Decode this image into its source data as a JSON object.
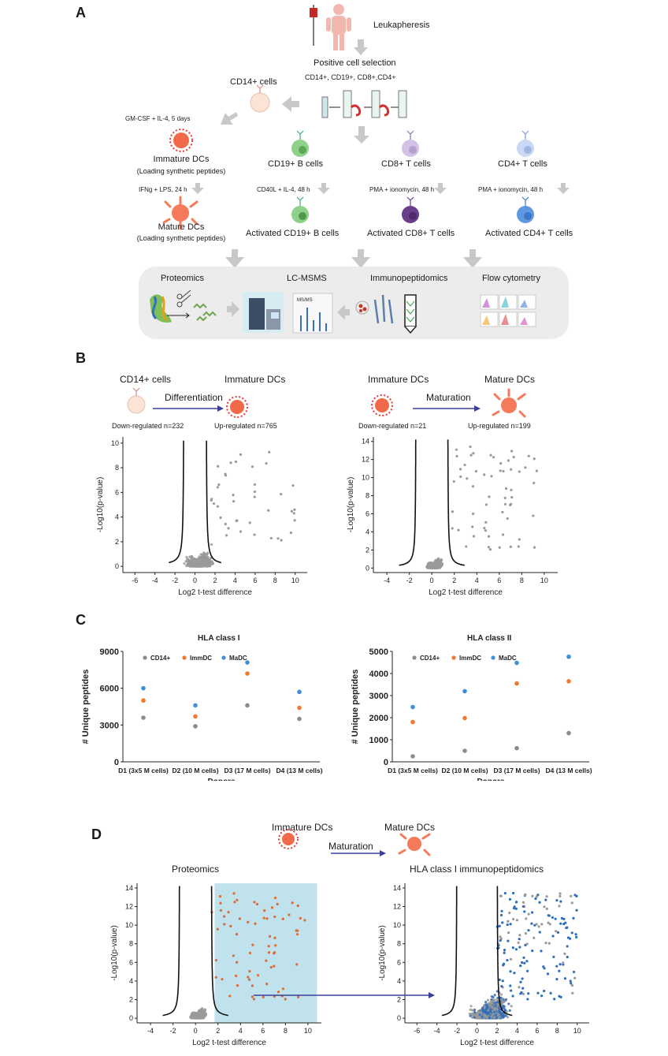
{
  "panelA": {
    "letter": "A",
    "leukapheresis": "Leukapheresis",
    "positive_selection": "Positive cell selection",
    "markers": "CD14+, CD19+, CD8+,CD4+",
    "cd14": "CD14+ cells",
    "gmcsf": "GM-CSF + IL-4, 5 days",
    "immature": "Immature DCs",
    "immature_sub": "(Loading synthetic peptides)",
    "ifng": "IFNg + LPS, 24 h",
    "mature": "Mature DCs",
    "mature_sub": "(Loading synthetic peptides)",
    "cd19": "CD19+ B cells",
    "cd40l": "CD40L + IL-4, 48 h",
    "act_cd19": "Activated CD19+ B cells",
    "cd8": "CD8+ T cells",
    "pma1": "PMA + ionomycin, 48 h",
    "act_cd8": "Activated CD8+ T cells",
    "cd4": "CD4+ T cells",
    "pma2": "PMA + ionomycin, 48 h",
    "act_cd4": "Activated CD4+ T cells",
    "proteomics": "Proteomics",
    "lcmsms": "LC-MSMS",
    "msms": "MS/MS",
    "immunopep": "Immunopeptidomics",
    "flow": "Flow cytometry"
  },
  "panelB": {
    "letter": "B",
    "left": {
      "from": "CD14+ cells",
      "to": "Immature DCs",
      "process": "Differentiation",
      "down": "Down-regulated n=232",
      "up": "Up-regulated n=765",
      "ylabel": "-Log10(p-value)",
      "xlabel": "Log2 t-test difference",
      "xticks": [
        "-6",
        "-4",
        "-2",
        "0",
        "2",
        "4",
        "6",
        "8",
        "10"
      ],
      "yticks": [
        "0",
        "2",
        "4",
        "6",
        "8",
        "10"
      ]
    },
    "right": {
      "from": "Immature DCs",
      "to": "Mature DCs",
      "process": "Maturation",
      "down": "Down-regulated n=21",
      "up": "Up-regulated n=199",
      "ylabel": "-Log10(p-value)",
      "xlabel": "Log2 t-test difference",
      "xticks": [
        "-4",
        "-2",
        "0",
        "2",
        "4",
        "6",
        "8",
        "10"
      ],
      "yticks": [
        "0",
        "2",
        "4",
        "6",
        "8",
        "10",
        "12",
        "14"
      ]
    }
  },
  "panelC": {
    "letter": "C",
    "colors": {
      "CD14+": "#8c8c8c",
      "ImmDC": "#f07a30",
      "MaDC": "#3f8fd8"
    },
    "chart_data": [
      {
        "type": "scatter",
        "title": "HLA class I",
        "xlabel": "Donors",
        "ylabel": "# Unique peptides",
        "categories": [
          "D1 (3x5 M cells)",
          "D2 (10 M cells)",
          "D3 (17 M cells)",
          "D4 (13 M cells)"
        ],
        "ylim": [
          0,
          9000
        ],
        "yticks": [
          "0",
          "3000",
          "6000",
          "9000"
        ],
        "series": [
          {
            "name": "CD14+",
            "values": [
              3600,
              2900,
              4600,
              3500
            ]
          },
          {
            "name": "ImmDC",
            "values": [
              5000,
              3700,
              7200,
              4400
            ]
          },
          {
            "name": "MaDC",
            "values": [
              6000,
              4600,
              8100,
              5700
            ]
          }
        ]
      },
      {
        "type": "scatter",
        "title": "HLA class II",
        "xlabel": "Donors",
        "ylabel": "# Unique peptides",
        "categories": [
          "D1 (3x5 M cells)",
          "D2 (10 M cells)",
          "D3 (17 M cells)",
          "D4 (13 M cells)"
        ],
        "ylim": [
          0,
          5000
        ],
        "yticks": [
          "0",
          "1000",
          "2000",
          "3000",
          "4000",
          "5000"
        ],
        "series": [
          {
            "name": "CD14+",
            "values": [
              250,
              500,
              620,
              1300
            ]
          },
          {
            "name": "ImmDC",
            "values": [
              1800,
              1980,
              3550,
              3650
            ]
          },
          {
            "name": "MaDC",
            "values": [
              2480,
              3200,
              4480,
              4760
            ]
          }
        ]
      }
    ]
  },
  "panelD": {
    "letter": "D",
    "from": "Immature DCs",
    "to": "Mature DCs",
    "process": "Maturation",
    "left_title": "Proteomics",
    "right_title": "HLA class I immunopeptidomics",
    "ylabel": "-Log10(p-value)",
    "xlabel": "Log2 t-test difference",
    "left_xticks": [
      "-4",
      "-2",
      "0",
      "2",
      "4",
      "6",
      "8",
      "10"
    ],
    "left_yticks": [
      "0",
      "2",
      "4",
      "6",
      "8",
      "10",
      "12",
      "14"
    ],
    "right_xticks": [
      "-6",
      "-4",
      "-2",
      "0",
      "2",
      "4",
      "6",
      "8",
      "10"
    ],
    "right_yticks": [
      "0",
      "2",
      "4",
      "6",
      "8",
      "10",
      "12",
      "14"
    ]
  }
}
